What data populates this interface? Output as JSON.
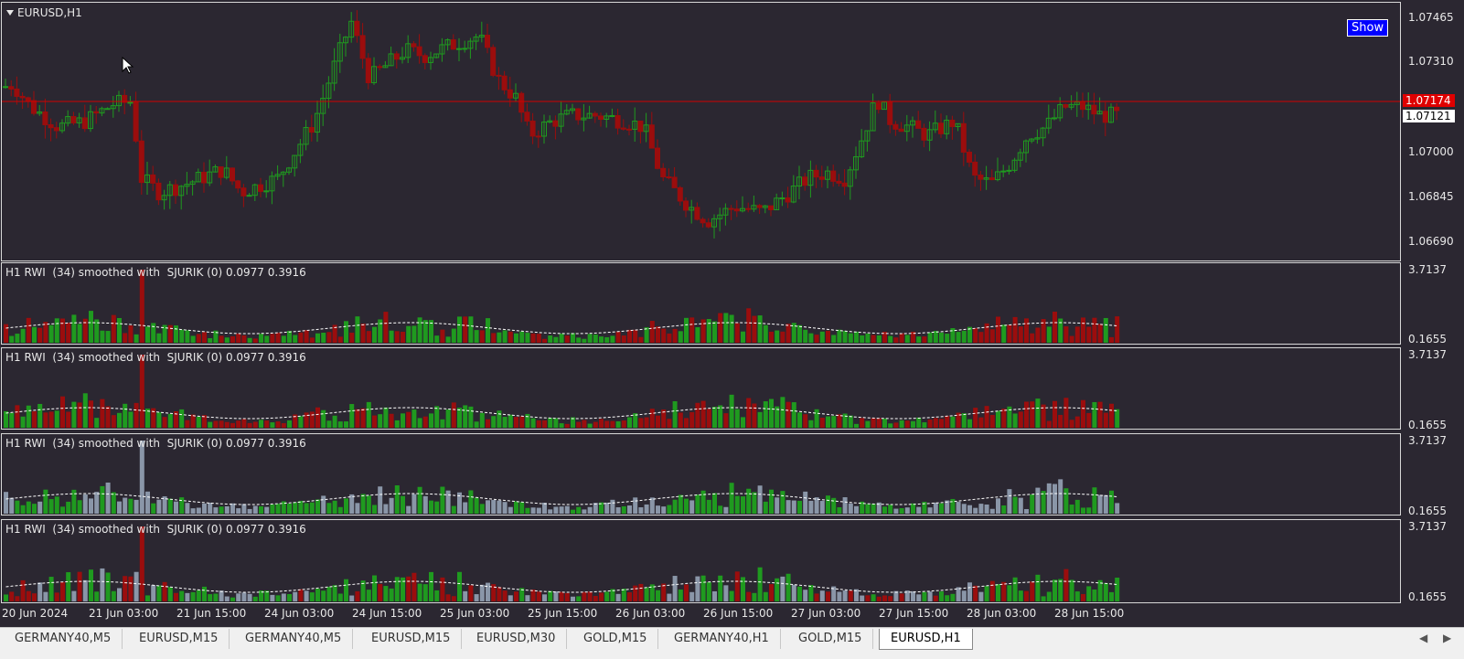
{
  "chart": {
    "symbol_title": "EURUSD,H1",
    "show_button": "Show",
    "price_ticks": [
      "1.07465",
      "1.07310",
      "1.07000",
      "1.06845",
      "1.06690"
    ],
    "current_price_red": "1.07174",
    "current_price_white": "1.07121",
    "indicator_label": "H1 RWI  (34) smoothed with  SJURIK (0) 0.0977 0.3916",
    "indicator_max": "3.7137",
    "indicator_min": "0.1655",
    "time_labels": [
      "20 Jun 2024",
      "21 Jun 03:00",
      "21 Jun 15:00",
      "24 Jun 03:00",
      "24 Jun 15:00",
      "25 Jun 03:00",
      "25 Jun 15:00",
      "26 Jun 03:00",
      "26 Jun 15:00",
      "27 Jun 03:00",
      "27 Jun 15:00",
      "28 Jun 03:00",
      "28 Jun 15:00"
    ]
  },
  "colors": {
    "background": "#2b2731",
    "bull": "#1f9a1f",
    "bear": "#9b0d0d",
    "neutral": "#8a96a8",
    "price_line": "#d00000"
  },
  "tabs": [
    "GERMANY40,M5",
    "EURUSD,M15",
    "GERMANY40,M5",
    "EURUSD,M15",
    "EURUSD,M30",
    "GOLD,M15",
    "GERMANY40,H1",
    "GOLD,M15",
    "EURUSD,H1"
  ],
  "active_tab_index": 8,
  "scroll_left": "◀",
  "scroll_right": "▶"
}
